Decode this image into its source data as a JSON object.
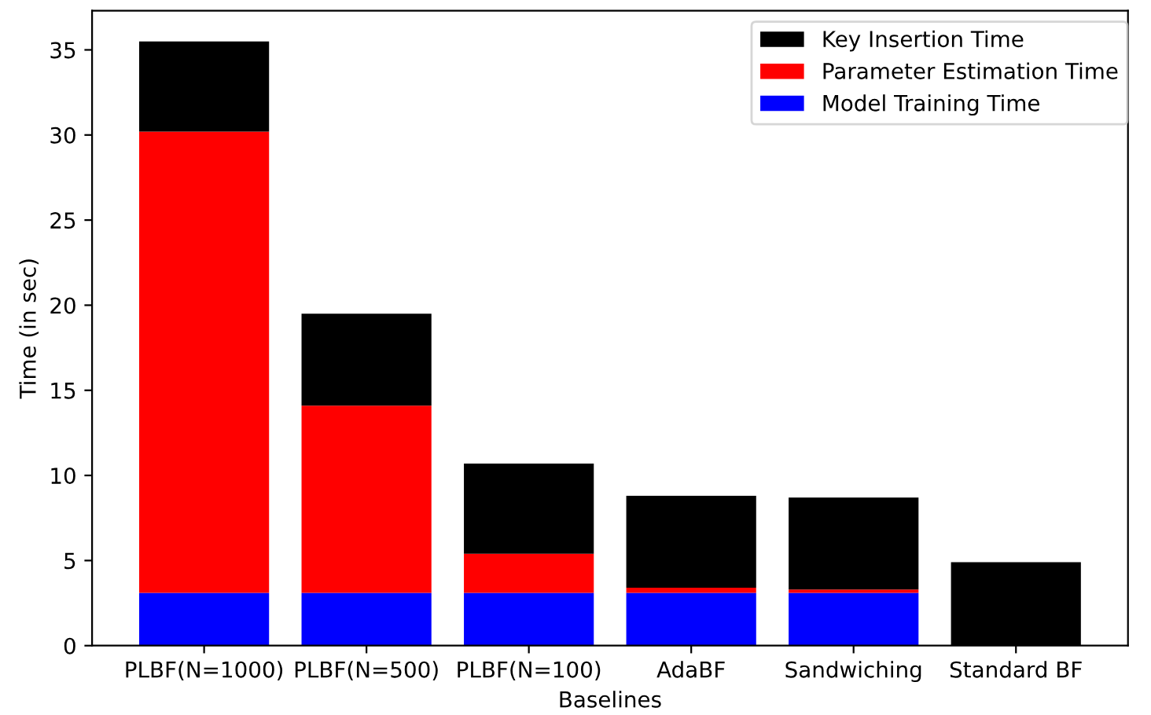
{
  "chart_data": {
    "type": "bar",
    "stacked": true,
    "xlabel": "Baselines",
    "ylabel": "Time (in sec)",
    "categories": [
      "PLBF(N=1000)",
      "PLBF(N=500)",
      "PLBF(N=100)",
      "AdaBF",
      "Sandwiching",
      "Standard BF"
    ],
    "series": [
      {
        "name": "Model Training Time",
        "color": "#0000ff",
        "values": [
          3.1,
          3.1,
          3.1,
          3.1,
          3.1,
          0
        ]
      },
      {
        "name": "Parameter Estimation Time",
        "color": "#ff0000",
        "values": [
          27.1,
          11.0,
          2.3,
          0.3,
          0.2,
          0
        ]
      },
      {
        "name": "Key Insertion Time",
        "color": "#000000",
        "values": [
          5.3,
          5.4,
          5.3,
          5.4,
          5.4,
          4.9
        ]
      }
    ],
    "ylim": [
      0,
      37.3
    ],
    "yticks": [
      0,
      5,
      10,
      15,
      20,
      25,
      30,
      35
    ],
    "legend": "top right"
  }
}
